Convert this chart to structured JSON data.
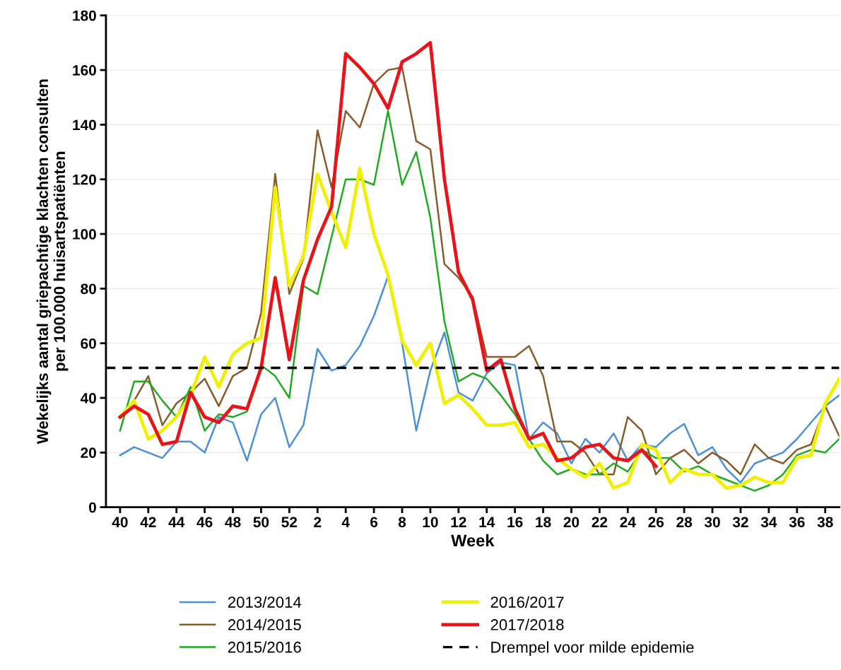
{
  "chart_data": {
    "type": "line",
    "xlabel": "Week",
    "ylabel": "Wekelijks aantal griepachtige klachten consulten\nper 100.000 huisartspatiënten",
    "categories": [
      "40",
      null,
      "42",
      null,
      "44",
      null,
      "46",
      null,
      "48",
      null,
      "50",
      null,
      "52",
      null,
      "2",
      null,
      "4",
      null,
      "6",
      null,
      "8",
      null,
      "10",
      null,
      "12",
      null,
      "14",
      null,
      "16",
      null,
      "18",
      null,
      "20",
      null,
      "22",
      null,
      "24",
      null,
      "26",
      null,
      "28",
      null,
      "30",
      null,
      "32",
      null,
      "34",
      null,
      "36",
      null,
      "38",
      null
    ],
    "series": [
      {
        "name": "2013/2014",
        "color": "#4a90d9",
        "values": [
          19,
          22,
          20,
          18,
          24,
          24,
          20,
          33,
          31,
          17,
          34,
          40,
          22,
          30,
          58,
          50,
          52,
          59,
          70,
          84.5,
          60,
          28,
          50,
          64,
          42,
          39,
          49,
          53,
          52,
          25,
          31,
          27,
          16,
          25,
          20,
          27,
          17,
          23,
          22,
          27,
          30.5,
          19,
          22,
          14,
          9,
          16,
          18,
          20,
          25,
          31,
          37,
          41
        ]
      },
      {
        "name": "2014/2015",
        "color": "#8b5a2b",
        "values": [
          33,
          39,
          48,
          30,
          38,
          42,
          47,
          37,
          48,
          51,
          71,
          122,
          78,
          91,
          138,
          117,
          145,
          139,
          155,
          160,
          161,
          134,
          131,
          89,
          84,
          77,
          55,
          55,
          55,
          59,
          48,
          24,
          24,
          20,
          12,
          12,
          33,
          28,
          12,
          18,
          21,
          16,
          20,
          17,
          12,
          23,
          18,
          16,
          21,
          23,
          37,
          26
        ]
      },
      {
        "name": "2015/2016",
        "color": "#22aa22",
        "values": [
          28,
          46,
          46,
          39,
          33,
          44,
          28,
          34,
          33,
          35,
          52,
          48,
          40,
          81,
          78,
          99,
          120,
          120,
          118,
          145,
          118,
          130,
          106,
          68,
          46,
          49,
          47,
          41,
          34,
          25,
          17,
          12,
          14,
          12,
          12,
          16,
          13,
          21,
          18,
          18,
          13,
          15,
          12,
          10,
          8,
          6,
          8,
          12,
          19,
          21,
          20,
          25
        ]
      },
      {
        "name": "2016/2017",
        "color": "#f0f000",
        "values": [
          33,
          39,
          25,
          28,
          33,
          41,
          55,
          44,
          56,
          60,
          62,
          117,
          81,
          92,
          122,
          108,
          95,
          124,
          100,
          85,
          61,
          52,
          60,
          38,
          41,
          36,
          30,
          30,
          31,
          22,
          23,
          18,
          14,
          11,
          16,
          7,
          9,
          23,
          21,
          9,
          14,
          12,
          12,
          7,
          8,
          11,
          9,
          9,
          18,
          19,
          38,
          47
        ]
      },
      {
        "name": "2017/2018",
        "color": "#e8141a",
        "values": [
          33,
          37,
          34,
          23,
          24,
          42,
          33,
          31,
          37,
          36,
          51,
          84,
          54,
          83,
          98,
          110,
          166,
          161,
          155,
          146,
          163,
          166,
          170,
          120,
          86,
          76,
          50,
          54,
          36,
          25,
          27,
          17,
          18,
          22,
          23,
          18,
          17,
          21,
          15,
          null,
          null,
          null,
          null,
          null,
          null,
          null,
          null,
          null,
          null,
          null,
          null,
          null
        ]
      }
    ],
    "ylim": [
      0,
      180
    ],
    "yticks": [
      0,
      20,
      40,
      60,
      80,
      100,
      120,
      140,
      160,
      180
    ],
    "grid": "y",
    "ref_lines": [
      {
        "axis": "y",
        "value": 51,
        "label": "Drempel voor milde epidemie",
        "color": "#000000",
        "line_style": "dashed"
      }
    ],
    "legend": "bottom"
  }
}
